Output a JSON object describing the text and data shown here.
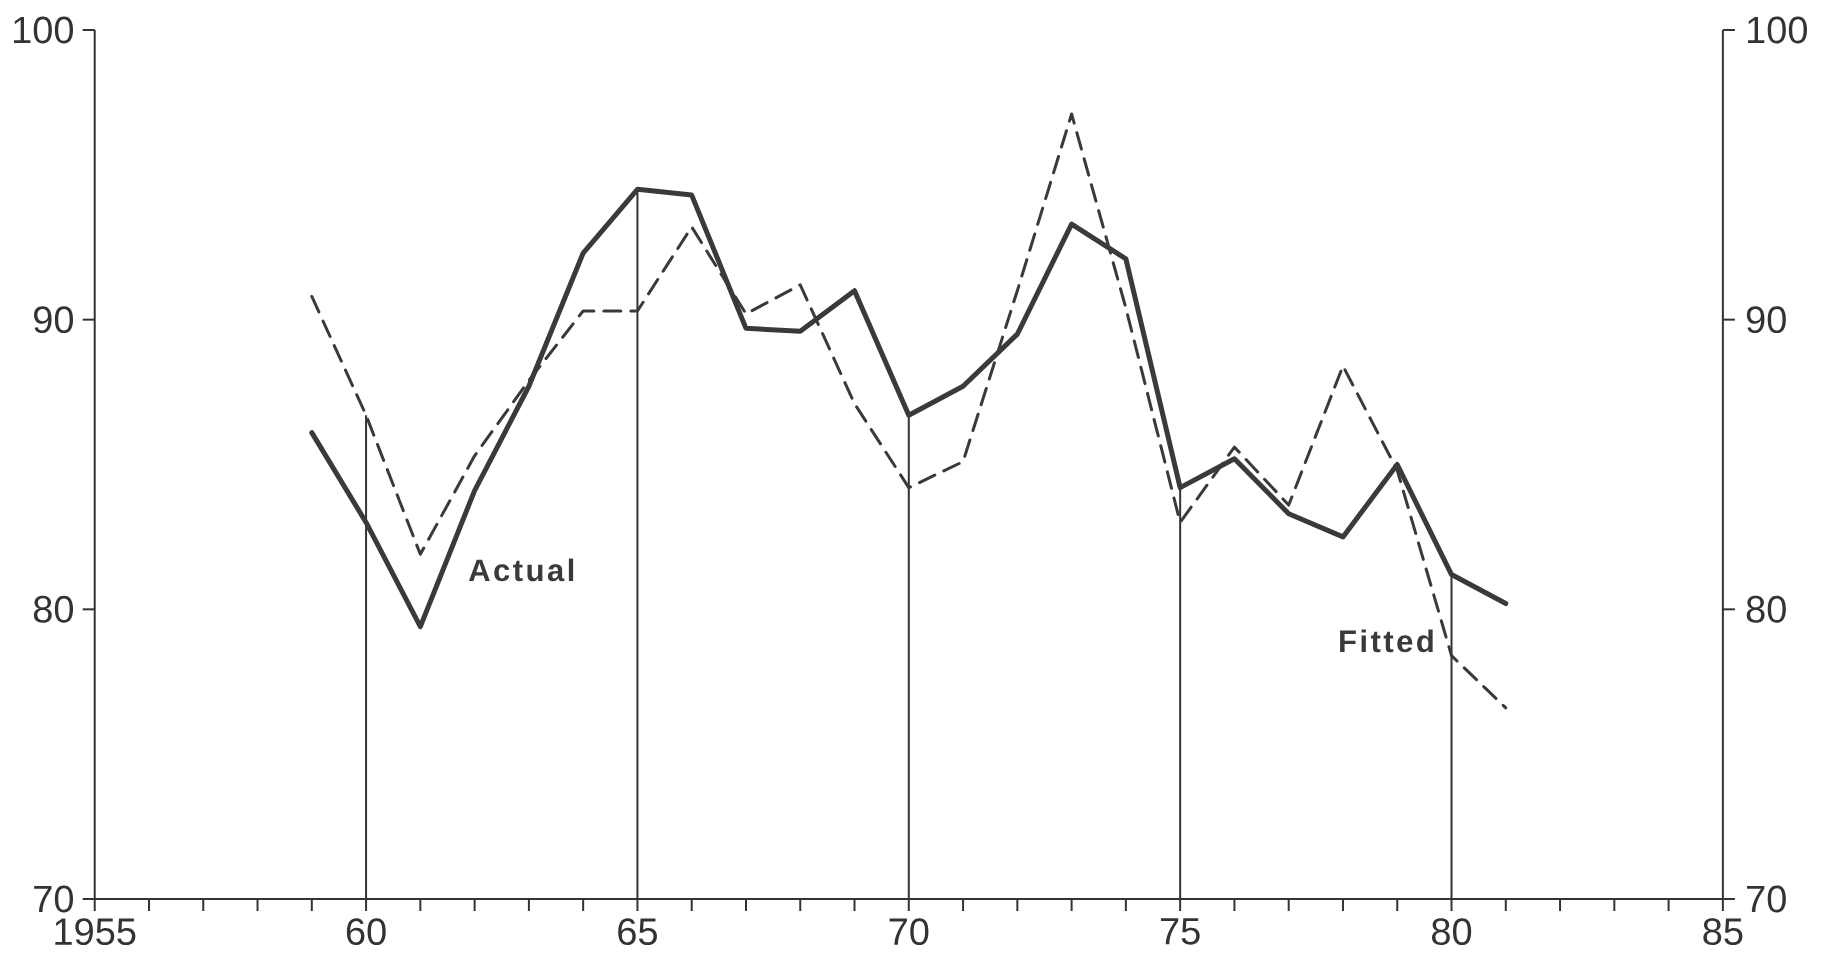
{
  "chart_data": {
    "type": "line",
    "x": [
      1959,
      1960,
      1961,
      1962,
      1963,
      1964,
      1965,
      1966,
      1967,
      1968,
      1969,
      1970,
      1971,
      1972,
      1973,
      1974,
      1975,
      1976,
      1977,
      1978,
      1979,
      1980,
      1981
    ],
    "series": [
      {
        "name": "Actual",
        "color": "#3a3a3a",
        "line_style": "solid",
        "values": [
          86.1,
          83.0,
          79.4,
          84.1,
          87.7,
          92.3,
          94.5,
          94.3,
          89.7,
          89.6,
          91.0,
          86.7,
          87.7,
          89.5,
          93.3,
          92.1,
          84.2,
          85.2,
          83.3,
          82.5,
          85.0,
          81.2,
          80.2
        ]
      },
      {
        "name": "Fitted",
        "color": "#3a3a3a",
        "line_style": "dashed",
        "values": [
          90.8,
          86.7,
          81.9,
          85.3,
          87.9,
          90.3,
          90.3,
          93.2,
          90.2,
          91.2,
          87.1,
          84.2,
          85.1,
          91.0,
          97.1,
          90.4,
          83.0,
          85.6,
          83.6,
          88.4,
          84.8,
          78.4,
          76.6
        ]
      }
    ],
    "xlim": [
      1955,
      1985
    ],
    "xticks": [
      {
        "value": 1955,
        "label": "1955"
      },
      {
        "value": 1956,
        "label": null
      },
      {
        "value": 1957,
        "label": null
      },
      {
        "value": 1958,
        "label": null
      },
      {
        "value": 1959,
        "label": null
      },
      {
        "value": 1960,
        "label": "60"
      },
      {
        "value": 1961,
        "label": null
      },
      {
        "value": 1962,
        "label": null
      },
      {
        "value": 1963,
        "label": null
      },
      {
        "value": 1964,
        "label": null
      },
      {
        "value": 1965,
        "label": "65"
      },
      {
        "value": 1966,
        "label": null
      },
      {
        "value": 1967,
        "label": null
      },
      {
        "value": 1968,
        "label": null
      },
      {
        "value": 1969,
        "label": null
      },
      {
        "value": 1970,
        "label": "70"
      },
      {
        "value": 1971,
        "label": null
      },
      {
        "value": 1972,
        "label": null
      },
      {
        "value": 1973,
        "label": null
      },
      {
        "value": 1974,
        "label": null
      },
      {
        "value": 1975,
        "label": "75"
      },
      {
        "value": 1976,
        "label": null
      },
      {
        "value": 1977,
        "label": null
      },
      {
        "value": 1978,
        "label": null
      },
      {
        "value": 1979,
        "label": null
      },
      {
        "value": 1980,
        "label": "80"
      },
      {
        "value": 1981,
        "label": null
      },
      {
        "value": 1982,
        "label": null
      },
      {
        "value": 1983,
        "label": null
      },
      {
        "value": 1984,
        "label": null
      },
      {
        "value": 1985,
        "label": "85"
      }
    ],
    "ylim": [
      70,
      100
    ],
    "yticks": [
      70,
      80,
      90,
      100
    ],
    "y2lim": [
      70,
      100
    ],
    "y2ticks": [
      70,
      80,
      90,
      100
    ],
    "ref_lines": [
      {
        "axis": "x",
        "value": 1960
      },
      {
        "axis": "x",
        "value": 1965
      },
      {
        "axis": "x",
        "value": 1970
      },
      {
        "axis": "x",
        "value": 1975
      },
      {
        "axis": "x",
        "value": 1980
      }
    ],
    "legend": false
  }
}
